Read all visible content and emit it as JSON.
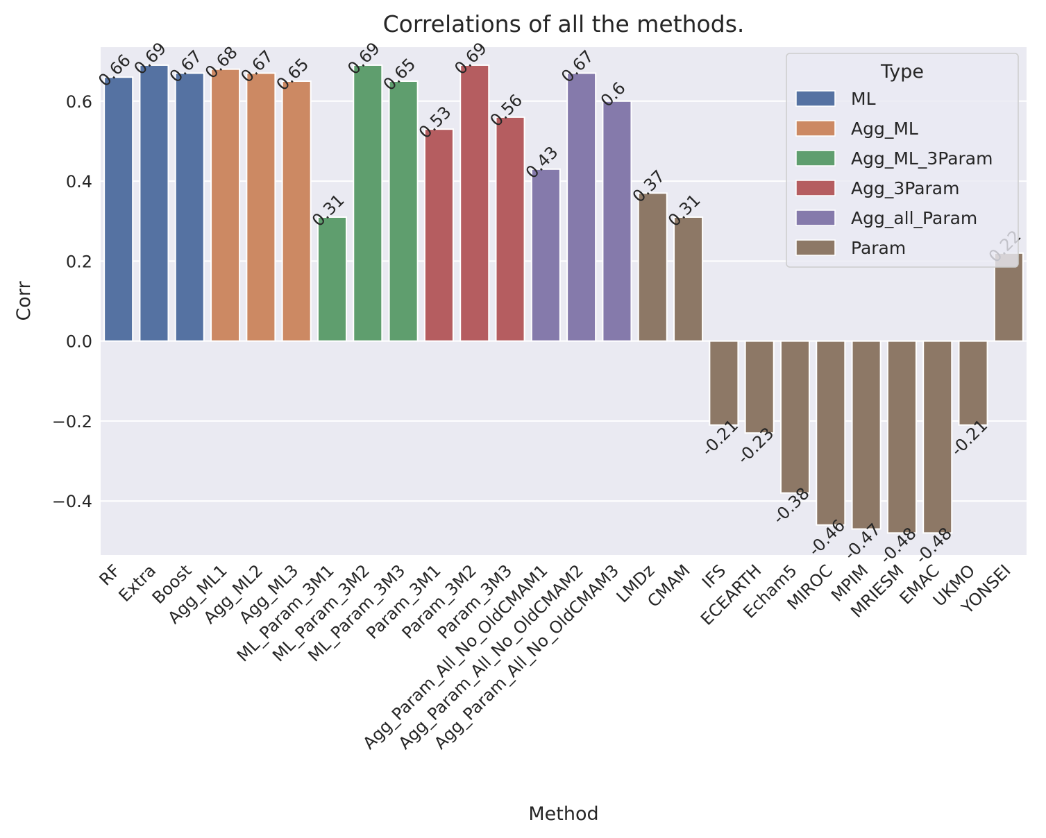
{
  "chart_data": {
    "type": "bar",
    "title": "Correlations of all the methods.",
    "xlabel": "Method",
    "ylabel": "Corr",
    "ylim": [
      -0.535,
      0.735
    ],
    "yticks": [
      -0.4,
      -0.2,
      0.0,
      0.2,
      0.4,
      0.6
    ],
    "ytick_labels": [
      "−0.4",
      "−0.2",
      "0.0",
      "0.2",
      "0.4",
      "0.6"
    ],
    "grid": true,
    "legend": {
      "title": "Type",
      "placement": "top-right",
      "entries": [
        {
          "name": "ML",
          "color": "#5572a2"
        },
        {
          "name": "Agg_ML",
          "color": "#cc8963"
        },
        {
          "name": "Agg_ML_3Param",
          "color": "#5f9e6e"
        },
        {
          "name": "Agg_3Param",
          "color": "#b55d60"
        },
        {
          "name": "Agg_all_Param",
          "color": "#857aab"
        },
        {
          "name": "Param",
          "color": "#8d7866"
        }
      ]
    },
    "bars": [
      {
        "category": "RF",
        "value": 0.66,
        "label": "0.66",
        "type": "ML"
      },
      {
        "category": "Extra",
        "value": 0.69,
        "label": "0.69",
        "type": "ML"
      },
      {
        "category": "Boost",
        "value": 0.67,
        "label": "0.67",
        "type": "ML"
      },
      {
        "category": "Agg_ML1",
        "value": 0.68,
        "label": "0.68",
        "type": "Agg_ML"
      },
      {
        "category": "Agg_ML2",
        "value": 0.67,
        "label": "0.67",
        "type": "Agg_ML"
      },
      {
        "category": "Agg_ML3",
        "value": 0.65,
        "label": "0.65",
        "type": "Agg_ML"
      },
      {
        "category": "ML_Param_3M1",
        "value": 0.31,
        "label": "0.31",
        "type": "Agg_ML_3Param"
      },
      {
        "category": "ML_Param_3M2",
        "value": 0.69,
        "label": "0.69",
        "type": "Agg_ML_3Param"
      },
      {
        "category": "ML_Param_3M3",
        "value": 0.65,
        "label": "0.65",
        "type": "Agg_ML_3Param"
      },
      {
        "category": "Param_3M1",
        "value": 0.53,
        "label": "0.53",
        "type": "Agg_3Param"
      },
      {
        "category": "Param_3M2",
        "value": 0.69,
        "label": "0.69",
        "type": "Agg_3Param"
      },
      {
        "category": "Param_3M3",
        "value": 0.56,
        "label": "0.56",
        "type": "Agg_3Param"
      },
      {
        "category": "Agg_Param_All_No_OldCMAM1",
        "value": 0.43,
        "label": "0.43",
        "type": "Agg_all_Param"
      },
      {
        "category": "Agg_Param_All_No_OldCMAM2",
        "value": 0.67,
        "label": "0.67",
        "type": "Agg_all_Param"
      },
      {
        "category": "Agg_Param_All_No_OldCMAM3",
        "value": 0.6,
        "label": "0.6",
        "type": "Agg_all_Param"
      },
      {
        "category": "LMDz",
        "value": 0.37,
        "label": "0.37",
        "type": "Param"
      },
      {
        "category": "CMAM",
        "value": 0.31,
        "label": "0.31",
        "type": "Param"
      },
      {
        "category": "IFS",
        "value": -0.21,
        "label": "-0.21",
        "type": "Param"
      },
      {
        "category": "ECEARTH",
        "value": -0.23,
        "label": "-0.23",
        "type": "Param"
      },
      {
        "category": "Echam5",
        "value": -0.38,
        "label": "-0.38",
        "type": "Param"
      },
      {
        "category": "MIROC",
        "value": -0.46,
        "label": "-0.46",
        "type": "Param"
      },
      {
        "category": "MPIM",
        "value": -0.47,
        "label": "-0.47",
        "type": "Param"
      },
      {
        "category": "MRIESM",
        "value": -0.48,
        "label": "-0.48",
        "type": "Param"
      },
      {
        "category": "EMAC",
        "value": -0.48,
        "label": "-0.48",
        "type": "Param"
      },
      {
        "category": "UKMO",
        "value": -0.21,
        "label": "-0.21",
        "type": "Param"
      },
      {
        "category": "YONSEI",
        "value": 0.22,
        "label": "0.22",
        "type": "Param"
      }
    ]
  }
}
